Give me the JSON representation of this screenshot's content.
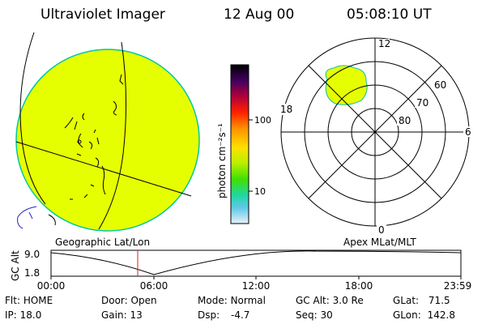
{
  "header": {
    "title": "Ultraviolet Imager",
    "date": "12 Aug 00",
    "time": "05:08:10 UT"
  },
  "image_panel": {
    "label": "Geographic Lat/Lon",
    "fill_color": "#e6ff00"
  },
  "colorbar": {
    "unit_label": "photon cm⁻²s⁻¹",
    "tick_labels": [
      "100",
      "10"
    ],
    "scale": "log"
  },
  "polar_panel": {
    "label": "Apex MLat/MLT",
    "mlt_labels": {
      "top": "12",
      "right": "6",
      "bottom": "0",
      "left": "18"
    },
    "mlat_labels": [
      "60",
      "70",
      "80"
    ],
    "fill_color": "#e6ff00"
  },
  "altitude_plot": {
    "y_label": "GC Alt",
    "y_ticks": [
      "9.0",
      "1.8"
    ],
    "x_ticks": [
      "00:00",
      "06:00",
      "12:00",
      "18:00",
      "23:59"
    ],
    "marker_time": "05:08"
  },
  "status": {
    "flt_label": "Flt:",
    "flt_value": "HOME",
    "door_label": "Door:",
    "door_value": "Open",
    "mode_label": "Mode:",
    "mode_value": "Normal",
    "gcalt_label": "GC Alt:",
    "gcalt_value": "3.0 Re",
    "glat_label": "GLat:",
    "glat_value": "71.5",
    "ip_label": "IP:",
    "ip_value": "18.0",
    "gain_label": "Gain:",
    "gain_value": "13",
    "dsp_label": "Dsp:",
    "dsp_value": "-4.7",
    "seq_label": "Seq:",
    "seq_value": "30",
    "glon_label": "GLon:",
    "glon_value": "142.8"
  }
}
